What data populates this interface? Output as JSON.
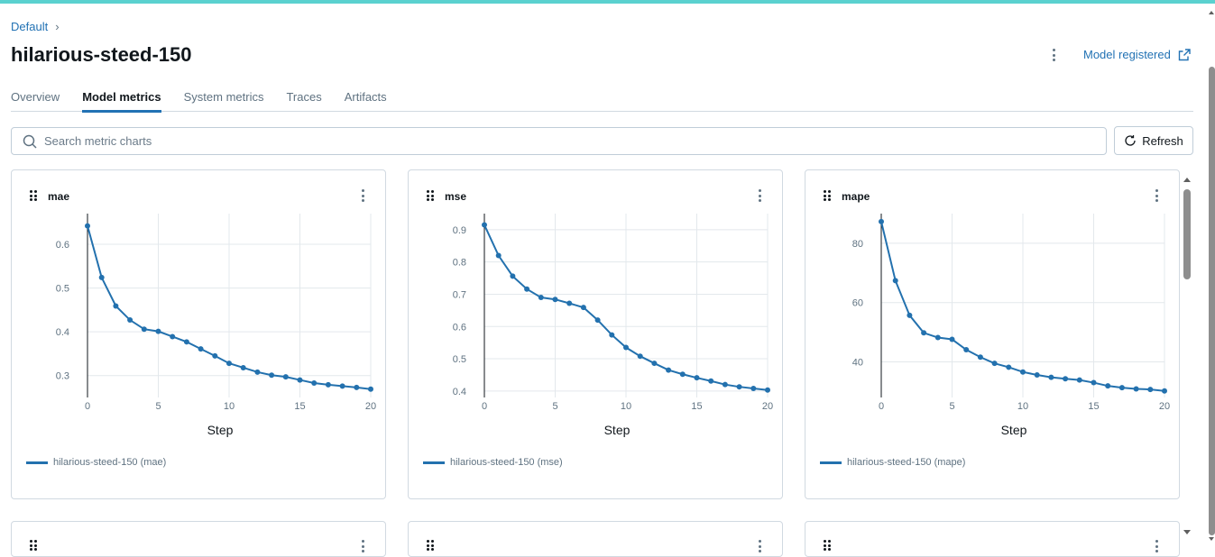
{
  "breadcrumb": {
    "parent": "Default",
    "separator": "›"
  },
  "run": {
    "title": "hilarious-steed-150"
  },
  "header": {
    "registered_label": "Model registered"
  },
  "tabs": [
    {
      "label": "Overview",
      "active": false
    },
    {
      "label": "Model metrics",
      "active": true
    },
    {
      "label": "System metrics",
      "active": false
    },
    {
      "label": "Traces",
      "active": false
    },
    {
      "label": "Artifacts",
      "active": false
    }
  ],
  "search": {
    "placeholder": "Search metric charts",
    "value": ""
  },
  "toolbar": {
    "refresh_label": "Refresh"
  },
  "colors": {
    "accent": "#2272b4",
    "series": "#2371ae",
    "top_bar": "#5ad1cf"
  },
  "chart_data": [
    {
      "type": "line",
      "title": "mae",
      "xlabel": "Step",
      "ylabel": "",
      "xlim": [
        0,
        20
      ],
      "ylim": [
        0.25,
        0.67
      ],
      "xticks": [
        0,
        5,
        10,
        15,
        20
      ],
      "yticks": [
        0.3,
        0.4,
        0.5,
        0.6
      ],
      "ytick_labels": [
        "0.3",
        "0.4",
        "0.5",
        "0.6"
      ],
      "grid": true,
      "legend": "bottom-left",
      "series": [
        {
          "name": "hilarious-steed-150 (mae)",
          "x": [
            0,
            1,
            2,
            3,
            4,
            5,
            6,
            7,
            8,
            9,
            10,
            11,
            12,
            13,
            14,
            15,
            16,
            17,
            18,
            19,
            20
          ],
          "y": [
            0.642,
            0.524,
            0.459,
            0.427,
            0.406,
            0.401,
            0.389,
            0.377,
            0.361,
            0.345,
            0.328,
            0.318,
            0.308,
            0.301,
            0.297,
            0.29,
            0.283,
            0.279,
            0.276,
            0.273,
            0.269
          ]
        }
      ]
    },
    {
      "type": "line",
      "title": "mse",
      "xlabel": "Step",
      "ylabel": "",
      "xlim": [
        0,
        20
      ],
      "ylim": [
        0.38,
        0.95
      ],
      "xticks": [
        0,
        5,
        10,
        15,
        20
      ],
      "yticks": [
        0.4,
        0.5,
        0.6,
        0.7,
        0.8,
        0.9
      ],
      "ytick_labels": [
        "0.4",
        "0.5",
        "0.6",
        "0.7",
        "0.8",
        "0.9"
      ],
      "grid": true,
      "legend": "bottom-left",
      "series": [
        {
          "name": "hilarious-steed-150 (mse)",
          "x": [
            0,
            1,
            2,
            3,
            4,
            5,
            6,
            7,
            8,
            9,
            10,
            11,
            12,
            13,
            14,
            15,
            16,
            17,
            18,
            19,
            20
          ],
          "y": [
            0.915,
            0.82,
            0.756,
            0.716,
            0.69,
            0.684,
            0.672,
            0.659,
            0.62,
            0.574,
            0.535,
            0.508,
            0.486,
            0.465,
            0.452,
            0.441,
            0.431,
            0.42,
            0.413,
            0.408,
            0.403
          ]
        }
      ]
    },
    {
      "type": "line",
      "title": "mape",
      "xlabel": "Step",
      "ylabel": "",
      "xlim": [
        0,
        20
      ],
      "ylim": [
        28,
        90
      ],
      "xticks": [
        0,
        5,
        10,
        15,
        20
      ],
      "yticks": [
        40,
        60,
        80
      ],
      "ytick_labels": [
        "40",
        "60",
        "80"
      ],
      "grid": true,
      "legend": "bottom-left",
      "series": [
        {
          "name": "hilarious-steed-150 (mape)",
          "x": [
            0,
            1,
            2,
            3,
            4,
            5,
            6,
            7,
            8,
            9,
            10,
            11,
            12,
            13,
            14,
            15,
            16,
            17,
            18,
            19,
            20
          ],
          "y": [
            87.3,
            67.4,
            55.7,
            49.8,
            48.2,
            47.6,
            44.1,
            41.6,
            39.5,
            38.2,
            36.6,
            35.6,
            34.8,
            34.3,
            33.9,
            33.0,
            31.9,
            31.3,
            30.9,
            30.7,
            30.2
          ]
        }
      ]
    }
  ]
}
